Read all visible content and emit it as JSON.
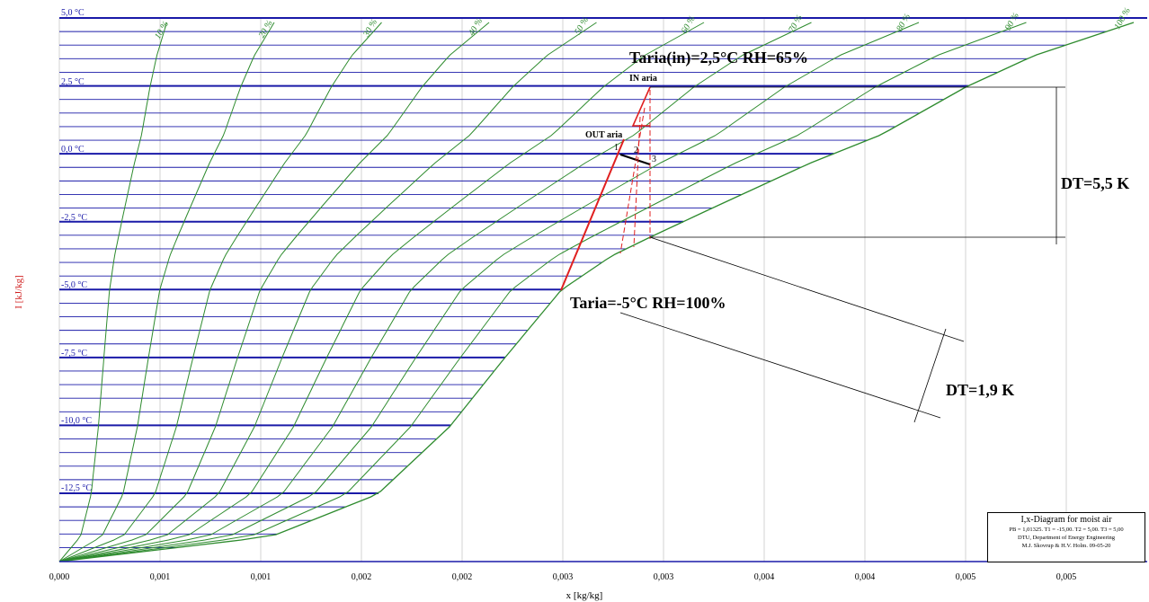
{
  "chart_data": {
    "type": "psychrometric Ix-diagram",
    "xlabel": "x [kg/kg]",
    "ylabel": "I [kJ/kg]",
    "x_tick_labels": [
      "0,000",
      "0,001",
      "0,001",
      "0,002",
      "0,002",
      "0,003",
      "0,003",
      "0,004",
      "0,004",
      "0,005",
      "0,005"
    ],
    "temperature_labels": [
      "5,0 °C",
      "2,5 °C",
      "0,0 °C",
      "-2,5 °C",
      "-5,0 °C",
      "-7,5 °C",
      "-10,0 °C",
      "-12,5 °C"
    ],
    "temperature_values": [
      5.0,
      2.5,
      0.0,
      -2.5,
      -5.0,
      -7.5,
      -10.0,
      -12.5
    ],
    "rh_labels": [
      "10 %",
      "20 %",
      "30 %",
      "40 %",
      "50 %",
      "60 %",
      "70 %",
      "80 %",
      "90 %",
      "100 %"
    ],
    "rh_values": [
      0.1,
      0.2,
      0.3,
      0.4,
      0.5,
      0.6,
      0.7,
      0.8,
      0.9,
      1.0
    ],
    "grid": true,
    "annotations": {
      "in_state": "Taria(in)=2,5°C    RH=65%",
      "in_label": "IN aria",
      "out_label": "OUT aria",
      "out_state": "Taria=-5°C    RH=100%",
      "dt_vertical": "DT=5,5 K",
      "dt_diagonal": "DT=1,9 K",
      "point_labels": [
        "1",
        "2",
        "3"
      ]
    },
    "info": {
      "title": "I,x-Diagram for moist air",
      "params": "PB = 1,01325. T1 = -15,00. T2 = 5,00. T3 = 5,00",
      "dept": "DTU, Department of Energy Engineering",
      "authors": "M.J. Skovrup & H.V. Holm. 09-05-20"
    },
    "colors": {
      "isotherm": "#1a1aa8",
      "rh_curve": "#2e8b2e",
      "process": "#e02020",
      "grid": "#c8c8c8",
      "ylabel": "#d02020"
    }
  }
}
